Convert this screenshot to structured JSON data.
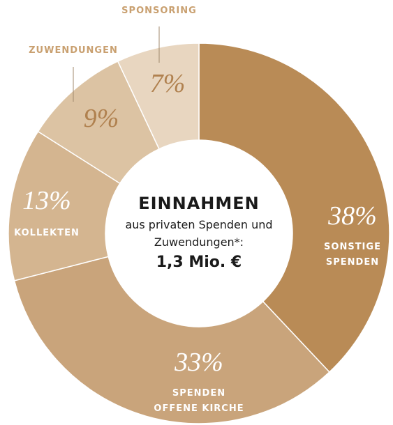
{
  "chart_data": {
    "type": "donut",
    "title": "EINNAHMEN",
    "subtitle": "aus privaten Spenden und Zuwendungen*:",
    "total_label": "1,3 Mio. €",
    "categories": [
      "SONSTIGE\nSPENDEN",
      "SPENDEN\nOFFENE KIRCHE",
      "KOLLEKTEN",
      "ZUWENDUNGEN",
      "SPONSORING"
    ],
    "values": [
      38,
      33,
      13,
      9,
      7
    ],
    "value_labels": [
      "38%",
      "33%",
      "13%",
      "9%",
      "7%"
    ],
    "colors": [
      "#b98b56",
      "#c9a47b",
      "#d4b590",
      "#dcc3a3",
      "#e8d6c0"
    ]
  }
}
